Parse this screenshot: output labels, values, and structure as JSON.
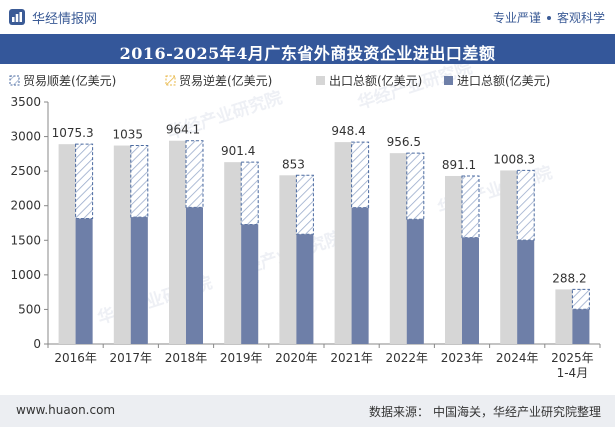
{
  "header": {
    "brand": "华经情报网",
    "motto_left": "专业严谨",
    "motto_right": "客观科学"
  },
  "footer": {
    "website": "www.huaon.com",
    "source_label": "数据来源：",
    "source_text": "中国海关，华经产业研究院整理"
  },
  "watermark": "华经产业研究院",
  "colors": {
    "export_bar": "#d6d6d6",
    "import_bar": "#6e7fa8",
    "surplus_stroke": "#4a6aa0",
    "deficit_stroke": "#e8b84a",
    "header_bg": "#34579a"
  },
  "chart_data": {
    "type": "bar",
    "title": "2016-2025年4月广东省外商投资企业进出口差额",
    "categories": [
      "2016年",
      "2017年",
      "2018年",
      "2019年",
      "2020年",
      "2021年",
      "2022年",
      "2023年",
      "2024年",
      "2025年\n1-4月"
    ],
    "series": [
      {
        "name": "贸易顺差(亿美元)",
        "values": [
          1075.3,
          1035,
          964.1,
          901.4,
          853,
          948.4,
          956.5,
          891.1,
          1008.3,
          288.2
        ]
      },
      {
        "name": "贸易逆差(亿美元)",
        "values": [
          null,
          null,
          null,
          null,
          null,
          null,
          null,
          null,
          null,
          null
        ]
      },
      {
        "name": "出口总额(亿美元)",
        "values": [
          2890,
          2870,
          2940,
          2630,
          2440,
          2920,
          2760,
          2430,
          2510,
          790
        ]
      },
      {
        "name": "进口总额(亿美元)",
        "values": [
          1815,
          1835,
          1976,
          1729,
          1587,
          1972,
          1804,
          1539,
          1502,
          502
        ]
      }
    ],
    "data_labels": [
      "1075.3",
      "1035",
      "964.1",
      "901.4",
      "853",
      "948.4",
      "956.5",
      "891.1",
      "1008.3",
      "288.2"
    ],
    "yticks": [
      "0",
      "500",
      "1000",
      "1500",
      "2000",
      "2500",
      "3000",
      "3500"
    ],
    "ylim": [
      0,
      3500
    ],
    "xlabel": "",
    "ylabel": "",
    "legend_position": "top-left",
    "grid": false
  }
}
